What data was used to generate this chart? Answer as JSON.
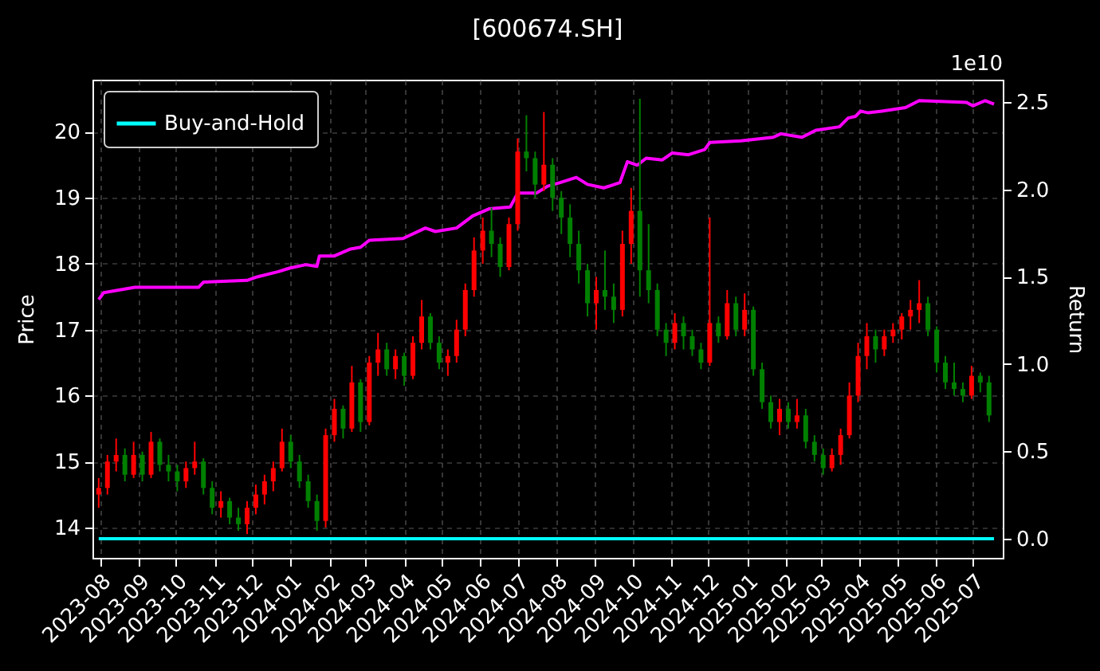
{
  "chart_data": {
    "type": "candlestick",
    "title": "[600674.SH]",
    "ylabel": "Price",
    "y2label": "Return",
    "annotations": [
      "1e10"
    ],
    "x": [
      "2023-07-31",
      "2023-08-07",
      "2023-08-14",
      "2023-08-21",
      "2023-08-28",
      "2023-09-04",
      "2023-09-11",
      "2023-09-18",
      "2023-09-25",
      "2023-10-02",
      "2023-10-09",
      "2023-10-16",
      "2023-10-23",
      "2023-10-30",
      "2023-11-06",
      "2023-11-13",
      "2023-11-20",
      "2023-11-27",
      "2023-12-04",
      "2023-12-11",
      "2023-12-18",
      "2023-12-25",
      "2024-01-01",
      "2024-01-08",
      "2024-01-15",
      "2024-01-22",
      "2024-01-29",
      "2024-02-05",
      "2024-02-12",
      "2024-02-19",
      "2024-02-26",
      "2024-03-04",
      "2024-03-11",
      "2024-03-18",
      "2024-03-25",
      "2024-04-01",
      "2024-04-08",
      "2024-04-15",
      "2024-04-22",
      "2024-04-29",
      "2024-05-06",
      "2024-05-13",
      "2024-05-20",
      "2024-05-27",
      "2024-06-03",
      "2024-06-10",
      "2024-06-17",
      "2024-06-24",
      "2024-07-01",
      "2024-07-08",
      "2024-07-15",
      "2024-07-22",
      "2024-07-29",
      "2024-08-05",
      "2024-08-12",
      "2024-08-19",
      "2024-08-26",
      "2024-09-02",
      "2024-09-09",
      "2024-09-16",
      "2024-09-23",
      "2024-09-30",
      "2024-10-07",
      "2024-10-14",
      "2024-10-21",
      "2024-10-28",
      "2024-11-04",
      "2024-11-11",
      "2024-11-18",
      "2024-11-25",
      "2024-12-02",
      "2024-12-09",
      "2024-12-16",
      "2024-12-23",
      "2024-12-30",
      "2025-01-06",
      "2025-01-13",
      "2025-01-20",
      "2025-01-27",
      "2025-02-03",
      "2025-02-10",
      "2025-02-17",
      "2025-02-24",
      "2025-03-03",
      "2025-03-10",
      "2025-03-17",
      "2025-03-24",
      "2025-03-31",
      "2025-04-07",
      "2025-04-14",
      "2025-04-21",
      "2025-04-28",
      "2025-05-05",
      "2025-05-12",
      "2025-05-19",
      "2025-05-26",
      "2025-06-02",
      "2025-06-09",
      "2025-06-16",
      "2025-06-23",
      "2025-06-30",
      "2025-07-07",
      "2025-07-14"
    ],
    "ohlc": [
      [
        14.5,
        14.75,
        14.3,
        14.6
      ],
      [
        14.6,
        15.1,
        14.5,
        15.0
      ],
      [
        15.0,
        15.35,
        14.85,
        15.1
      ],
      [
        15.1,
        15.2,
        14.7,
        14.8
      ],
      [
        14.8,
        15.3,
        14.75,
        15.1
      ],
      [
        15.1,
        15.15,
        14.7,
        14.8
      ],
      [
        14.8,
        15.45,
        14.75,
        15.3
      ],
      [
        15.3,
        15.35,
        14.85,
        14.95
      ],
      [
        14.95,
        15.1,
        14.7,
        14.85
      ],
      [
        14.85,
        14.95,
        14.55,
        14.7
      ],
      [
        14.7,
        15.0,
        14.6,
        14.9
      ],
      [
        14.9,
        15.3,
        14.8,
        15.0
      ],
      [
        15.0,
        15.05,
        14.5,
        14.6
      ],
      [
        14.6,
        14.7,
        14.2,
        14.3
      ],
      [
        14.3,
        14.55,
        14.15,
        14.4
      ],
      [
        14.4,
        14.45,
        14.05,
        14.15
      ],
      [
        14.15,
        14.3,
        13.95,
        14.05
      ],
      [
        14.05,
        14.4,
        13.9,
        14.3
      ],
      [
        14.3,
        14.65,
        14.2,
        14.5
      ],
      [
        14.5,
        14.8,
        14.35,
        14.7
      ],
      [
        14.7,
        15.0,
        14.55,
        14.9
      ],
      [
        14.9,
        15.5,
        14.85,
        15.3
      ],
      [
        15.3,
        15.4,
        14.9,
        15.0
      ],
      [
        15.0,
        15.1,
        14.6,
        14.7
      ],
      [
        14.7,
        14.8,
        14.3,
        14.4
      ],
      [
        14.4,
        14.5,
        13.95,
        14.1
      ],
      [
        14.1,
        15.5,
        14.0,
        15.4
      ],
      [
        15.4,
        15.95,
        15.3,
        15.8
      ],
      [
        15.8,
        15.85,
        15.35,
        15.5
      ],
      [
        15.5,
        16.45,
        15.45,
        16.2
      ],
      [
        16.2,
        16.25,
        15.45,
        15.6
      ],
      [
        15.6,
        16.6,
        15.55,
        16.5
      ],
      [
        16.5,
        16.95,
        16.3,
        16.7
      ],
      [
        16.7,
        16.8,
        16.3,
        16.4
      ],
      [
        16.4,
        16.7,
        16.25,
        16.6
      ],
      [
        16.6,
        16.65,
        16.15,
        16.3
      ],
      [
        16.3,
        16.9,
        16.25,
        16.8
      ],
      [
        16.8,
        17.45,
        16.7,
        17.2
      ],
      [
        17.2,
        17.25,
        16.7,
        16.8
      ],
      [
        16.8,
        16.9,
        16.4,
        16.5
      ],
      [
        16.5,
        16.7,
        16.3,
        16.6
      ],
      [
        16.6,
        17.15,
        16.5,
        17.0
      ],
      [
        17.0,
        17.7,
        16.9,
        17.6
      ],
      [
        17.6,
        18.4,
        17.5,
        18.2
      ],
      [
        18.2,
        18.7,
        18.0,
        18.5
      ],
      [
        18.5,
        18.85,
        18.1,
        18.3
      ],
      [
        18.3,
        18.4,
        17.8,
        17.95
      ],
      [
        17.95,
        18.7,
        17.9,
        18.6
      ],
      [
        18.6,
        19.9,
        18.5,
        19.7
      ],
      [
        19.7,
        20.25,
        19.4,
        19.6
      ],
      [
        19.6,
        19.7,
        19.0,
        19.2
      ],
      [
        19.2,
        20.3,
        19.1,
        19.5
      ],
      [
        19.5,
        19.6,
        18.8,
        19.0
      ],
      [
        19.0,
        19.1,
        18.45,
        18.7
      ],
      [
        18.7,
        18.9,
        18.1,
        18.3
      ],
      [
        18.3,
        18.5,
        17.7,
        17.9
      ],
      [
        17.9,
        18.0,
        17.2,
        17.4
      ],
      [
        17.4,
        17.8,
        17.0,
        17.6
      ],
      [
        17.6,
        18.2,
        17.3,
        17.5
      ],
      [
        17.5,
        17.7,
        17.1,
        17.3
      ],
      [
        17.3,
        18.5,
        17.2,
        18.3
      ],
      [
        18.3,
        19.15,
        18.0,
        18.8
      ],
      [
        18.8,
        20.5,
        17.5,
        17.9
      ],
      [
        17.9,
        18.6,
        17.4,
        17.6
      ],
      [
        17.6,
        17.7,
        16.9,
        17.0
      ],
      [
        17.0,
        17.1,
        16.6,
        16.8
      ],
      [
        16.8,
        17.25,
        16.7,
        17.1
      ],
      [
        17.1,
        17.2,
        16.7,
        16.9
      ],
      [
        16.9,
        17.0,
        16.6,
        16.7
      ],
      [
        16.7,
        16.8,
        16.4,
        16.5
      ],
      [
        16.5,
        18.7,
        16.45,
        17.1
      ],
      [
        17.1,
        17.2,
        16.8,
        16.9
      ],
      [
        16.9,
        17.6,
        16.85,
        17.4
      ],
      [
        17.4,
        17.5,
        16.9,
        17.0
      ],
      [
        17.0,
        17.55,
        16.9,
        17.3
      ],
      [
        17.3,
        17.35,
        16.3,
        16.4
      ],
      [
        16.4,
        16.5,
        15.8,
        15.9
      ],
      [
        15.9,
        16.0,
        15.5,
        15.6
      ],
      [
        15.6,
        15.95,
        15.4,
        15.8
      ],
      [
        15.8,
        15.9,
        15.5,
        15.6
      ],
      [
        15.6,
        15.95,
        15.5,
        15.7
      ],
      [
        15.7,
        15.8,
        15.2,
        15.3
      ],
      [
        15.3,
        15.4,
        15.0,
        15.1
      ],
      [
        15.1,
        15.2,
        14.8,
        14.9
      ],
      [
        14.9,
        15.2,
        14.85,
        15.1
      ],
      [
        15.1,
        15.5,
        14.95,
        15.4
      ],
      [
        15.4,
        16.2,
        15.35,
        16.0
      ],
      [
        16.0,
        16.8,
        15.9,
        16.6
      ],
      [
        16.6,
        17.1,
        16.4,
        16.9
      ],
      [
        16.9,
        17.0,
        16.5,
        16.7
      ],
      [
        16.7,
        17.0,
        16.6,
        16.9
      ],
      [
        16.9,
        17.1,
        16.8,
        17.0
      ],
      [
        17.0,
        17.25,
        16.85,
        17.2
      ],
      [
        17.2,
        17.45,
        17.0,
        17.3
      ],
      [
        17.3,
        17.75,
        17.1,
        17.4
      ],
      [
        17.4,
        17.5,
        16.9,
        17.0
      ],
      [
        17.0,
        17.05,
        16.35,
        16.5
      ],
      [
        16.5,
        16.6,
        16.1,
        16.2
      ],
      [
        16.2,
        16.5,
        16.0,
        16.1
      ],
      [
        16.1,
        16.2,
        15.9,
        16.0
      ],
      [
        16.0,
        16.45,
        15.95,
        16.3
      ],
      [
        16.3,
        16.35,
        16.05,
        16.2
      ],
      [
        16.2,
        16.3,
        15.6,
        15.7
      ]
    ],
    "colors": [
      "#ff0000",
      "#ff0000",
      "#ff0000",
      "#008000",
      "#ff0000",
      "#008000",
      "#ff0000",
      "#008000",
      "#008000",
      "#008000",
      "#ff0000",
      "#ff0000",
      "#008000",
      "#008000",
      "#ff0000",
      "#008000",
      "#008000",
      "#ff0000",
      "#ff0000",
      "#ff0000",
      "#ff0000",
      "#ff0000",
      "#008000",
      "#008000",
      "#008000",
      "#008000",
      "#ff0000",
      "#ff0000",
      "#008000",
      "#ff0000",
      "#008000",
      "#ff0000",
      "#ff0000",
      "#008000",
      "#ff0000",
      "#008000",
      "#ff0000",
      "#ff0000",
      "#008000",
      "#008000",
      "#ff0000",
      "#ff0000",
      "#ff0000",
      "#ff0000",
      "#ff0000",
      "#008000",
      "#008000",
      "#ff0000",
      "#ff0000",
      "#008000",
      "#008000",
      "#ff0000",
      "#008000",
      "#008000",
      "#008000",
      "#008000",
      "#008000",
      "#ff0000",
      "#008000",
      "#008000",
      "#ff0000",
      "#ff0000",
      "#008000",
      "#008000",
      "#008000",
      "#008000",
      "#ff0000",
      "#008000",
      "#008000",
      "#008000",
      "#ff0000",
      "#008000",
      "#ff0000",
      "#008000",
      "#ff0000",
      "#008000",
      "#008000",
      "#008000",
      "#ff0000",
      "#008000",
      "#ff0000",
      "#008000",
      "#008000",
      "#008000",
      "#ff0000",
      "#ff0000",
      "#ff0000",
      "#ff0000",
      "#ff0000",
      "#008000",
      "#ff0000",
      "#ff0000",
      "#ff0000",
      "#ff0000",
      "#ff0000",
      "#008000",
      "#008000",
      "#008000",
      "#008000",
      "#008000",
      "#ff0000",
      "#008000",
      "#008000"
    ],
    "series": [
      {
        "type": "line",
        "axis": "y2",
        "color": "#ff00ff",
        "x": [
          "2023-07-31",
          "2023-08-04",
          "2023-08-29",
          "2023-10-19",
          "2023-10-23",
          "2023-11-27",
          "2023-12-05",
          "2023-12-22",
          "2023-12-31",
          "2024-01-13",
          "2024-01-22",
          "2024-01-24",
          "2024-02-05",
          "2024-02-18",
          "2024-02-26",
          "2024-03-04",
          "2024-03-31",
          "2024-04-18",
          "2024-04-26",
          "2024-05-13",
          "2024-05-26",
          "2024-06-08",
          "2024-06-25",
          "2024-07-01",
          "2024-07-16",
          "2024-07-25",
          "2024-08-04",
          "2024-08-17",
          "2024-08-26",
          "2024-09-08",
          "2024-09-21",
          "2024-09-27",
          "2024-10-05",
          "2024-10-12",
          "2024-10-25",
          "2024-11-02",
          "2024-11-15",
          "2024-11-28",
          "2024-12-02",
          "2024-12-27",
          "2025-01-22",
          "2025-01-28",
          "2025-02-14",
          "2025-02-25",
          "2025-03-16",
          "2025-03-23",
          "2025-03-29",
          "2025-04-02",
          "2025-04-08",
          "2025-04-19",
          "2025-05-08",
          "2025-05-19",
          "2025-06-26",
          "2025-07-01",
          "2025-07-11",
          "2025-07-18"
        ],
        "values": [
          1.37,
          1.41,
          1.44,
          1.44,
          1.47,
          1.48,
          1.5,
          1.53,
          1.55,
          1.57,
          1.56,
          1.62,
          1.62,
          1.66,
          1.67,
          1.71,
          1.72,
          1.78,
          1.76,
          1.78,
          1.85,
          1.89,
          1.9,
          1.98,
          1.98,
          2.02,
          2.04,
          2.07,
          2.03,
          2.01,
          2.04,
          2.16,
          2.14,
          2.18,
          2.17,
          2.21,
          2.2,
          2.23,
          2.27,
          2.28,
          2.3,
          2.32,
          2.3,
          2.34,
          2.36,
          2.41,
          2.42,
          2.45,
          2.44,
          2.45,
          2.47,
          2.51,
          2.5,
          2.48,
          2.51,
          2.49
        ]
      },
      {
        "type": "line",
        "axis": "y2",
        "name": "Buy-and-Hold",
        "color": "#00ffff",
        "x": [
          "2023-07-31",
          "2025-07-18"
        ],
        "values": [
          0,
          0
        ]
      }
    ],
    "xlim": [
      "2023-07-26",
      "2025-07-25"
    ],
    "xticks": [
      "2023-08",
      "2023-09",
      "2023-10",
      "2023-11",
      "2023-12",
      "2024-01",
      "2024-02",
      "2024-03",
      "2024-04",
      "2024-05",
      "2024-06",
      "2024-07",
      "2024-08",
      "2024-09",
      "2024-10",
      "2024-11",
      "2024-12",
      "2025-01",
      "2025-02",
      "2025-03",
      "2025-04",
      "2025-05",
      "2025-06",
      "2025-07"
    ],
    "ylim": [
      13.54,
      20.79
    ],
    "yticks": [
      14,
      15,
      16,
      17,
      18,
      19,
      20
    ],
    "y2lim": [
      -0.11,
      2.63
    ],
    "y2ticks": [
      {
        "value": 0,
        "label": "0.0"
      },
      0.5,
      {
        "value": 1,
        "label": "1.0"
      },
      1.5,
      {
        "value": 2,
        "label": "2.0"
      },
      2.5
    ],
    "grid": true,
    "legend": "top left"
  }
}
